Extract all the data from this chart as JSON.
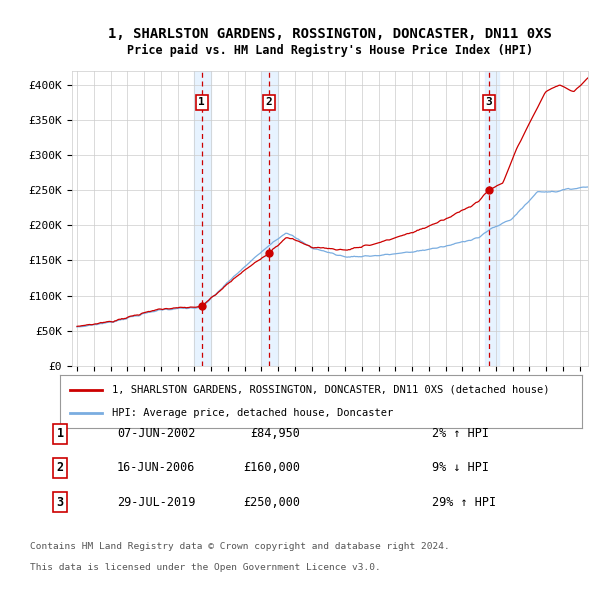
{
  "title": "1, SHARLSTON GARDENS, ROSSINGTON, DONCASTER, DN11 0XS",
  "subtitle": "Price paid vs. HM Land Registry's House Price Index (HPI)",
  "ylim": [
    0,
    420000
  ],
  "yticks": [
    0,
    50000,
    100000,
    150000,
    200000,
    250000,
    300000,
    350000,
    400000
  ],
  "ytick_labels": [
    "£0",
    "£50K",
    "£100K",
    "£150K",
    "£200K",
    "£250K",
    "£300K",
    "£350K",
    "£400K"
  ],
  "xlim_start": 1994.7,
  "xlim_end": 2025.5,
  "transactions": [
    {
      "num": 1,
      "year": 2002.44,
      "price": 84950,
      "date": "07-JUN-2002",
      "pct": "2%",
      "dir": "↑"
    },
    {
      "num": 2,
      "year": 2006.46,
      "price": 160000,
      "date": "16-JUN-2006",
      "pct": "9%",
      "dir": "↓"
    },
    {
      "num": 3,
      "year": 2019.58,
      "price": 250000,
      "date": "29-JUL-2019",
      "pct": "29%",
      "dir": "↑"
    }
  ],
  "legend_line1": "1, SHARLSTON GARDENS, ROSSINGTON, DONCASTER, DN11 0XS (detached house)",
  "legend_line2": "HPI: Average price, detached house, Doncaster",
  "footer1": "Contains HM Land Registry data © Crown copyright and database right 2024.",
  "footer2": "This data is licensed under the Open Government Licence v3.0.",
  "sale_color": "#cc0000",
  "hpi_color": "#7aade0",
  "marker_box_color": "#cc0000",
  "vline_color": "#cc0000",
  "shade_color": "#ddeeff",
  "background_color": "#ffffff",
  "grid_color": "#cccccc"
}
